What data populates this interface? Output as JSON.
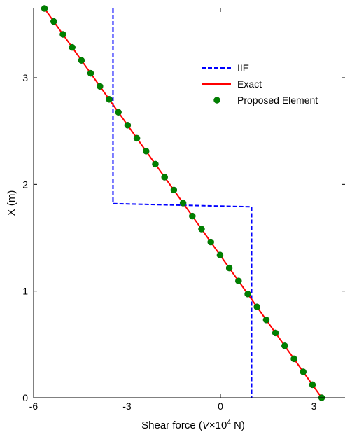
{
  "chart_data": {
    "type": "line",
    "xlabel_prefix": "Shear force (",
    "xlabel_var": "V",
    "xlabel_mid": "×10",
    "xlabel_exp": "4",
    "xlabel_suffix": " N)",
    "ylabel": "X (m)",
    "xlim": [
      -6,
      4
    ],
    "ylim": [
      0,
      3.65
    ],
    "xticks": [
      -6,
      -3,
      0,
      3
    ],
    "xtick_labels": [
      "-6",
      "-3",
      "0",
      "3"
    ],
    "yticks": [
      0,
      1,
      2,
      3
    ],
    "ytick_labels": [
      "0",
      "1",
      "2",
      "3"
    ],
    "grid": false,
    "legend_position": "upper-right",
    "colors": {
      "iie": "#0000ff",
      "exact": "#ff0000",
      "proposed": "#008000"
    },
    "series": [
      {
        "name": "IIE",
        "style": "dashed",
        "x": [
          -3.45,
          -3.45,
          1.0,
          1.0
        ],
        "y": [
          3.65,
          1.82,
          1.79,
          0
        ]
      },
      {
        "name": "Exact",
        "style": "solid",
        "x": [
          -5.65,
          3.25
        ],
        "y": [
          3.65,
          0
        ]
      },
      {
        "name": "Proposed Element",
        "style": "markers",
        "x": [
          -5.65,
          -5.353,
          -5.057,
          -4.76,
          -4.463,
          -4.167,
          -3.87,
          -3.573,
          -3.277,
          -2.98,
          -2.683,
          -2.387,
          -2.09,
          -1.793,
          -1.497,
          -1.2,
          -0.903,
          -0.607,
          -0.31,
          -0.013,
          0.283,
          0.58,
          0.877,
          1.173,
          1.47,
          1.767,
          2.063,
          2.36,
          2.657,
          2.953,
          3.25
        ],
        "y": [
          3.65,
          3.528,
          3.407,
          3.285,
          3.163,
          3.042,
          2.92,
          2.798,
          2.677,
          2.555,
          2.433,
          2.312,
          2.19,
          2.068,
          1.947,
          1.825,
          1.703,
          1.582,
          1.46,
          1.338,
          1.217,
          1.095,
          0.973,
          0.852,
          0.73,
          0.608,
          0.487,
          0.365,
          0.243,
          0.122,
          0.0
        ]
      }
    ]
  }
}
